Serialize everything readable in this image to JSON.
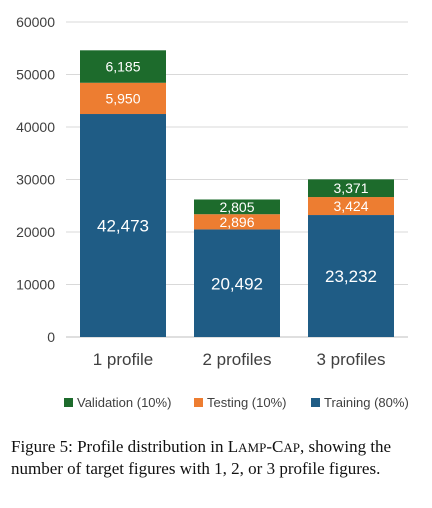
{
  "chart_data": {
    "type": "bar",
    "stacked": true,
    "categories": [
      "1 profile",
      "2 profiles",
      "3 profiles"
    ],
    "series": [
      {
        "name": "Training (80%)",
        "color": "#1f5c85",
        "values": [
          42473,
          20492,
          23232
        ],
        "labels": [
          "42,473",
          "20,492",
          "23,232"
        ]
      },
      {
        "name": "Testing (10%)",
        "color": "#ed7d31",
        "values": [
          5950,
          2896,
          3424
        ],
        "labels": [
          "5,950",
          "2,896",
          "3,424"
        ]
      },
      {
        "name": "Validation (10%)",
        "color": "#1d6b2c",
        "values": [
          6185,
          2805,
          3371
        ],
        "labels": [
          "6,185",
          "2,805",
          "3,371"
        ]
      }
    ],
    "legend_order": [
      "Validation (10%)",
      "Testing (10%)",
      "Training (80%)"
    ],
    "yticks": [
      "0",
      "10000",
      "20000",
      "30000",
      "40000",
      "50000",
      "60000"
    ],
    "ylim": [
      0,
      60000
    ],
    "grid": true,
    "legend_position": "bottom"
  },
  "caption": {
    "html": "Figure 5: Profile distribution in L<span style=\"font-size:13px\">AMP</span>-C<span style=\"font-size:13px\">AP</span>, showing the number of target figures with 1, 2, or 3 profile figures."
  }
}
